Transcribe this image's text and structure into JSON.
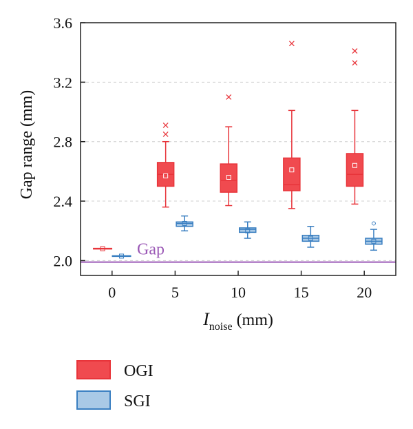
{
  "chart_data": {
    "type": "box",
    "xlabel": {
      "symbol": "I",
      "subscript": "noise",
      "unit": "(mm)"
    },
    "ylabel": "Gap range (mm)",
    "ylim": [
      1.9,
      3.6
    ],
    "yticks": [
      2.0,
      2.4,
      2.8,
      3.2,
      3.6
    ],
    "ytick_labels": [
      "2.0",
      "2.4",
      "2.8",
      "3.2",
      "3.6"
    ],
    "xticks": [
      0,
      5,
      10,
      15,
      20
    ],
    "xtick_labels": [
      "0",
      "5",
      "10",
      "15",
      "20"
    ],
    "grid": "horizontal dashed",
    "reference_line": {
      "y": 1.99,
      "label": "Gap",
      "color": "#9b59b6"
    },
    "series": [
      {
        "name": "OGI",
        "color": "#e8343a",
        "fill": "#f04a4f",
        "boxes": [
          {
            "x": 0,
            "min": 2.08,
            "q1": 2.08,
            "median": 2.08,
            "q3": 2.08,
            "max": 2.08,
            "mean": 2.08,
            "outliers": []
          },
          {
            "x": 5,
            "min": 2.36,
            "q1": 2.5,
            "median": 2.58,
            "q3": 2.66,
            "max": 2.8,
            "mean": 2.57,
            "outliers": [
              2.85,
              2.91
            ]
          },
          {
            "x": 10,
            "min": 2.37,
            "q1": 2.46,
            "median": 2.54,
            "q3": 2.65,
            "max": 2.9,
            "mean": 2.56,
            "outliers": [
              3.1
            ]
          },
          {
            "x": 15,
            "min": 2.35,
            "q1": 2.47,
            "median": 2.51,
            "q3": 2.69,
            "max": 3.01,
            "mean": 2.61,
            "outliers": [
              3.46
            ]
          },
          {
            "x": 20,
            "min": 2.38,
            "q1": 2.5,
            "median": 2.58,
            "q3": 2.72,
            "max": 3.01,
            "mean": 2.64,
            "outliers": [
              3.33,
              3.41
            ]
          }
        ]
      },
      {
        "name": "SGI",
        "color": "#3a7fc1",
        "fill": "#a9c9e6",
        "boxes": [
          {
            "x": 0,
            "min": 2.03,
            "q1": 2.03,
            "median": 2.03,
            "q3": 2.03,
            "max": 2.03,
            "mean": 2.03,
            "outliers": []
          },
          {
            "x": 5,
            "min": 2.2,
            "q1": 2.23,
            "median": 2.25,
            "q3": 2.26,
            "max": 2.3,
            "mean": 2.25,
            "outliers": []
          },
          {
            "x": 10,
            "min": 2.15,
            "q1": 2.19,
            "median": 2.21,
            "q3": 2.22,
            "max": 2.26,
            "mean": 2.2,
            "outliers": []
          },
          {
            "x": 15,
            "min": 2.09,
            "q1": 2.13,
            "median": 2.15,
            "q3": 2.17,
            "max": 2.23,
            "mean": 2.15,
            "outliers": []
          },
          {
            "x": 20,
            "min": 2.07,
            "q1": 2.11,
            "median": 2.13,
            "q3": 2.15,
            "max": 2.21,
            "mean": 2.13,
            "outliers": [
              2.25
            ]
          }
        ]
      }
    ],
    "legend": {
      "placement": "bottom-left",
      "entries": [
        "OGI",
        "SGI"
      ]
    }
  }
}
